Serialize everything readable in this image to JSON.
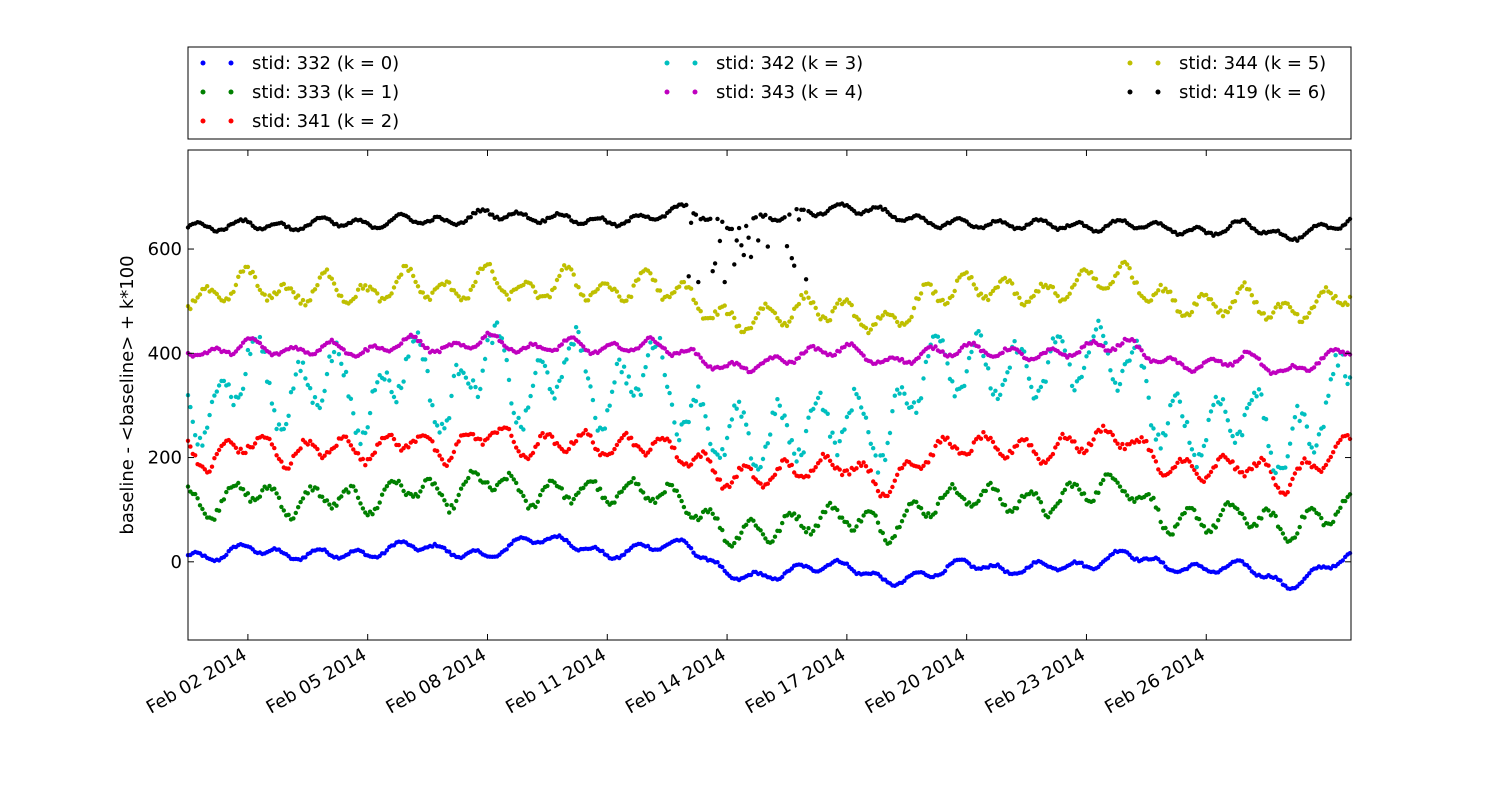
{
  "chart_data": {
    "type": "scatter",
    "title": "",
    "xlabel": "",
    "ylabel": "baseline - <baseline> + k*100",
    "xlim": [
      "2014-01-31T12:00",
      "2014-03-01T15:00"
    ],
    "ylim": [
      -150,
      790
    ],
    "x_ticks": [
      "Feb 02 2014",
      "Feb 05 2014",
      "Feb 08 2014",
      "Feb 11 2014",
      "Feb 14 2014",
      "Feb 17 2014",
      "Feb 20 2014",
      "Feb 23 2014",
      "Feb 26 2014"
    ],
    "x_tick_dates": [
      "2014-02-02",
      "2014-02-05",
      "2014-02-08",
      "2014-02-11",
      "2014-02-14",
      "2014-02-17",
      "2014-02-20",
      "2014-02-23",
      "2014-02-26"
    ],
    "y_ticks": [
      0,
      200,
      400,
      600
    ],
    "grid": false,
    "legend_position": "top",
    "series": [
      {
        "name": "stid: 332 (k = 0)",
        "color": "#0000ff",
        "offset": 0,
        "x": [
          "2014-01-31T12:00",
          "2014-02-01",
          "2014-02-02",
          "2014-02-03",
          "2014-02-04",
          "2014-02-05",
          "2014-02-06",
          "2014-02-07",
          "2014-02-08",
          "2014-02-09",
          "2014-02-10",
          "2014-02-11",
          "2014-02-12",
          "2014-02-13",
          "2014-02-14",
          "2014-02-15",
          "2014-02-16",
          "2014-02-17",
          "2014-02-18",
          "2014-02-19",
          "2014-02-20",
          "2014-02-21",
          "2014-02-22",
          "2014-02-23",
          "2014-02-24",
          "2014-02-25",
          "2014-02-26",
          "2014-02-27",
          "2014-02-28",
          "2014-03-01T15:00"
        ],
        "y": [
          12,
          5,
          30,
          10,
          18,
          12,
          35,
          20,
          10,
          45,
          40,
          10,
          30,
          35,
          -25,
          -30,
          -10,
          -5,
          -40,
          -25,
          0,
          -20,
          -5,
          -10,
          20,
          -10,
          -15,
          -5,
          -50,
          15
        ]
      },
      {
        "name": "stid: 333 (k = 1)",
        "color": "#008000",
        "offset": 100,
        "x": [
          "2014-01-31T12:00",
          "2014-02-01",
          "2014-02-02",
          "2014-02-03",
          "2014-02-04",
          "2014-02-05",
          "2014-02-06",
          "2014-02-07",
          "2014-02-08",
          "2014-02-09",
          "2014-02-10",
          "2014-02-11",
          "2014-02-12",
          "2014-02-13",
          "2014-02-14",
          "2014-02-15",
          "2014-02-16",
          "2014-02-17",
          "2014-02-18",
          "2014-02-19",
          "2014-02-20",
          "2014-02-21",
          "2014-02-22",
          "2014-02-23",
          "2014-02-24",
          "2014-02-25",
          "2014-02-26",
          "2014-02-27",
          "2014-02-28",
          "2014-03-01T15:00"
        ],
        "y": [
          120,
          100,
          145,
          105,
          130,
          110,
          150,
          120,
          165,
          125,
          140,
          130,
          140,
          110,
          55,
          60,
          80,
          90,
          60,
          110,
          130,
          120,
          110,
          140,
          150,
          75,
          80,
          95,
          60,
          110
        ]
      },
      {
        "name": "stid: 341 (k = 2)",
        "color": "#ff0000",
        "offset": 200,
        "x": [
          "2014-01-31T12:00",
          "2014-02-01",
          "2014-02-02",
          "2014-02-03",
          "2014-02-04",
          "2014-02-05",
          "2014-02-06",
          "2014-02-07",
          "2014-02-08",
          "2014-02-09",
          "2014-02-10",
          "2014-02-11",
          "2014-02-12",
          "2014-02-13",
          "2014-02-14",
          "2014-02-15",
          "2014-02-16",
          "2014-02-17",
          "2014-02-18",
          "2014-02-19",
          "2014-02-20",
          "2014-02-21",
          "2014-02-22",
          "2014-02-23",
          "2014-02-24",
          "2014-02-25",
          "2014-02-26",
          "2014-02-27",
          "2014-02-28",
          "2014-03-01T15:00"
        ],
        "y": [
          210,
          190,
          235,
          200,
          225,
          210,
          240,
          205,
          255,
          215,
          235,
          220,
          230,
          205,
          160,
          165,
          180,
          190,
          140,
          210,
          225,
          220,
          210,
          235,
          240,
          180,
          175,
          190,
          150,
          230
        ]
      },
      {
        "name": "stid: 342 (k = 3)",
        "color": "#00bfbf",
        "offset": 300,
        "x": [
          "2014-01-31T12:00",
          "2014-02-01",
          "2014-02-02",
          "2014-02-03",
          "2014-02-04",
          "2014-02-05",
          "2014-02-06",
          "2014-02-07",
          "2014-02-08",
          "2014-02-09",
          "2014-02-10",
          "2014-02-11",
          "2014-02-12",
          "2014-02-13",
          "2014-02-14",
          "2014-02-15",
          "2014-02-16",
          "2014-02-17",
          "2014-02-18",
          "2014-02-19",
          "2014-02-20",
          "2014-02-21",
          "2014-02-22",
          "2014-02-23",
          "2014-02-24",
          "2014-02-25",
          "2014-02-26",
          "2014-02-27",
          "2014-02-28",
          "2014-03-01T15:00"
        ],
        "y": [
          310,
          260,
          400,
          290,
          380,
          270,
          410,
          280,
          420,
          290,
          410,
          290,
          400,
          280,
          240,
          235,
          260,
          280,
          230,
          390,
          380,
          360,
          370,
          400,
          390,
          260,
          250,
          300,
          200,
          370
        ]
      },
      {
        "name": "stid: 343 (k = 4)",
        "color": "#bf00bf",
        "offset": 400,
        "x": [
          "2014-01-31T12:00",
          "2014-02-01",
          "2014-02-02",
          "2014-02-03",
          "2014-02-04",
          "2014-02-05",
          "2014-02-06",
          "2014-02-07",
          "2014-02-08",
          "2014-02-09",
          "2014-02-10",
          "2014-02-11",
          "2014-02-12",
          "2014-02-13",
          "2014-02-14",
          "2014-02-15",
          "2014-02-16",
          "2014-02-17",
          "2014-02-18",
          "2014-02-19",
          "2014-02-20",
          "2014-02-21",
          "2014-02-22",
          "2014-02-23",
          "2014-02-24",
          "2014-02-25",
          "2014-02-26",
          "2014-02-27",
          "2014-02-28",
          "2014-03-01T15:00"
        ],
        "y": [
          410,
          395,
          420,
          400,
          415,
          400,
          425,
          405,
          430,
          405,
          420,
          405,
          420,
          400,
          370,
          380,
          400,
          410,
          380,
          400,
          410,
          400,
          395,
          410,
          420,
          380,
          375,
          395,
          360,
          410
        ]
      },
      {
        "name": "stid: 344 (k = 5)",
        "color": "#bfbf00",
        "offset": 500,
        "x": [
          "2014-01-31T12:00",
          "2014-02-01",
          "2014-02-02",
          "2014-02-03",
          "2014-02-04",
          "2014-02-05",
          "2014-02-06",
          "2014-02-07",
          "2014-02-08",
          "2014-02-09",
          "2014-02-10",
          "2014-02-11",
          "2014-02-12",
          "2014-02-13",
          "2014-02-14",
          "2014-02-15",
          "2014-02-16",
          "2014-02-17",
          "2014-02-18",
          "2014-02-19",
          "2014-02-20",
          "2014-02-21",
          "2014-02-22",
          "2014-02-23",
          "2014-02-24",
          "2014-02-25",
          "2014-02-26",
          "2014-02-27",
          "2014-02-28",
          "2014-03-01T15:00"
        ],
        "y": [
          510,
          500,
          545,
          505,
          535,
          505,
          545,
          510,
          550,
          510,
          545,
          510,
          540,
          510,
          460,
          470,
          490,
          480,
          450,
          510,
          530,
          520,
          510,
          540,
          550,
          500,
          490,
          510,
          470,
          520
        ]
      },
      {
        "name": "stid: 419 (k = 6)",
        "color": "#000000",
        "offset": 600,
        "x": [
          "2014-01-31T12:00",
          "2014-02-01",
          "2014-02-02",
          "2014-02-03",
          "2014-02-04",
          "2014-02-05",
          "2014-02-06",
          "2014-02-07",
          "2014-02-08",
          "2014-02-09",
          "2014-02-10",
          "2014-02-11",
          "2014-02-12",
          "2014-02-13",
          "2014-02-14",
          "2014-02-15",
          "2014-02-16",
          "2014-02-17",
          "2014-02-18",
          "2014-02-19",
          "2014-02-20",
          "2014-02-21",
          "2014-02-22",
          "2014-02-23",
          "2014-02-24",
          "2014-02-25",
          "2014-02-26",
          "2014-02-27",
          "2014-02-28",
          "2014-03-01T15:00"
        ],
        "y": [
          645,
          640,
          650,
          640,
          655,
          645,
          660,
          650,
          670,
          660,
          660,
          650,
          660,
          680,
          640,
          660,
          670,
          680,
          670,
          650,
          650,
          645,
          650,
          640,
          650,
          640,
          630,
          650,
          620,
          655
        ]
      }
    ]
  }
}
